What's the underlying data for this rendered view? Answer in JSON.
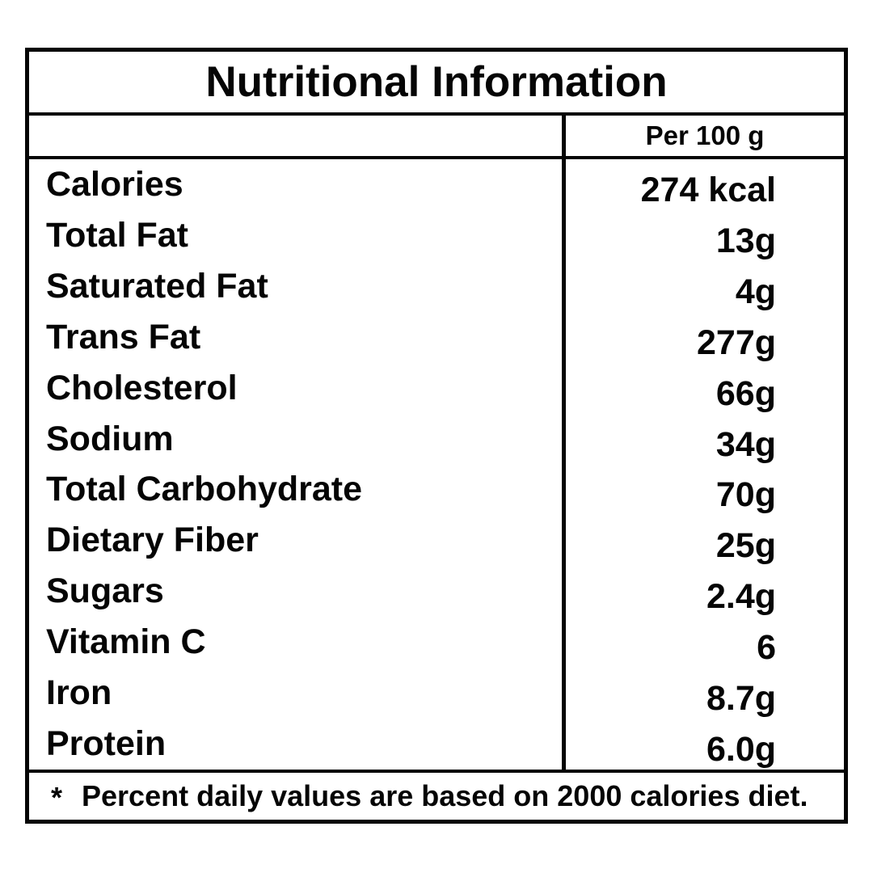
{
  "title": "Nutritional Information",
  "columns": {
    "value_header": "Per 100 g"
  },
  "rows": [
    {
      "label": "Calories",
      "value": "274 kcal"
    },
    {
      "label": "Total Fat",
      "value": "13g"
    },
    {
      "label": "Saturated Fat",
      "value": "4g"
    },
    {
      "label": "Trans Fat",
      "value": "277g"
    },
    {
      "label": "Cholesterol",
      "value": "66g"
    },
    {
      "label": "Sodium",
      "value": "34g"
    },
    {
      "label": "Total Carbohydrate",
      "value": "70g"
    },
    {
      "label": "Dietary Fiber",
      "value": "25g"
    },
    {
      "label": "Sugars",
      "value": "2.4g"
    },
    {
      "label": "Vitamin C",
      "value": "6"
    },
    {
      "label": "Iron",
      "value": "8.7g"
    },
    {
      "label": "Protein",
      "value": "6.0g"
    }
  ],
  "footnote": {
    "marker": "*",
    "text": "Percent daily values are based on 2000 calories diet."
  },
  "colors": {
    "border": "#050505",
    "text": "#050505",
    "background": "#ffffff"
  }
}
